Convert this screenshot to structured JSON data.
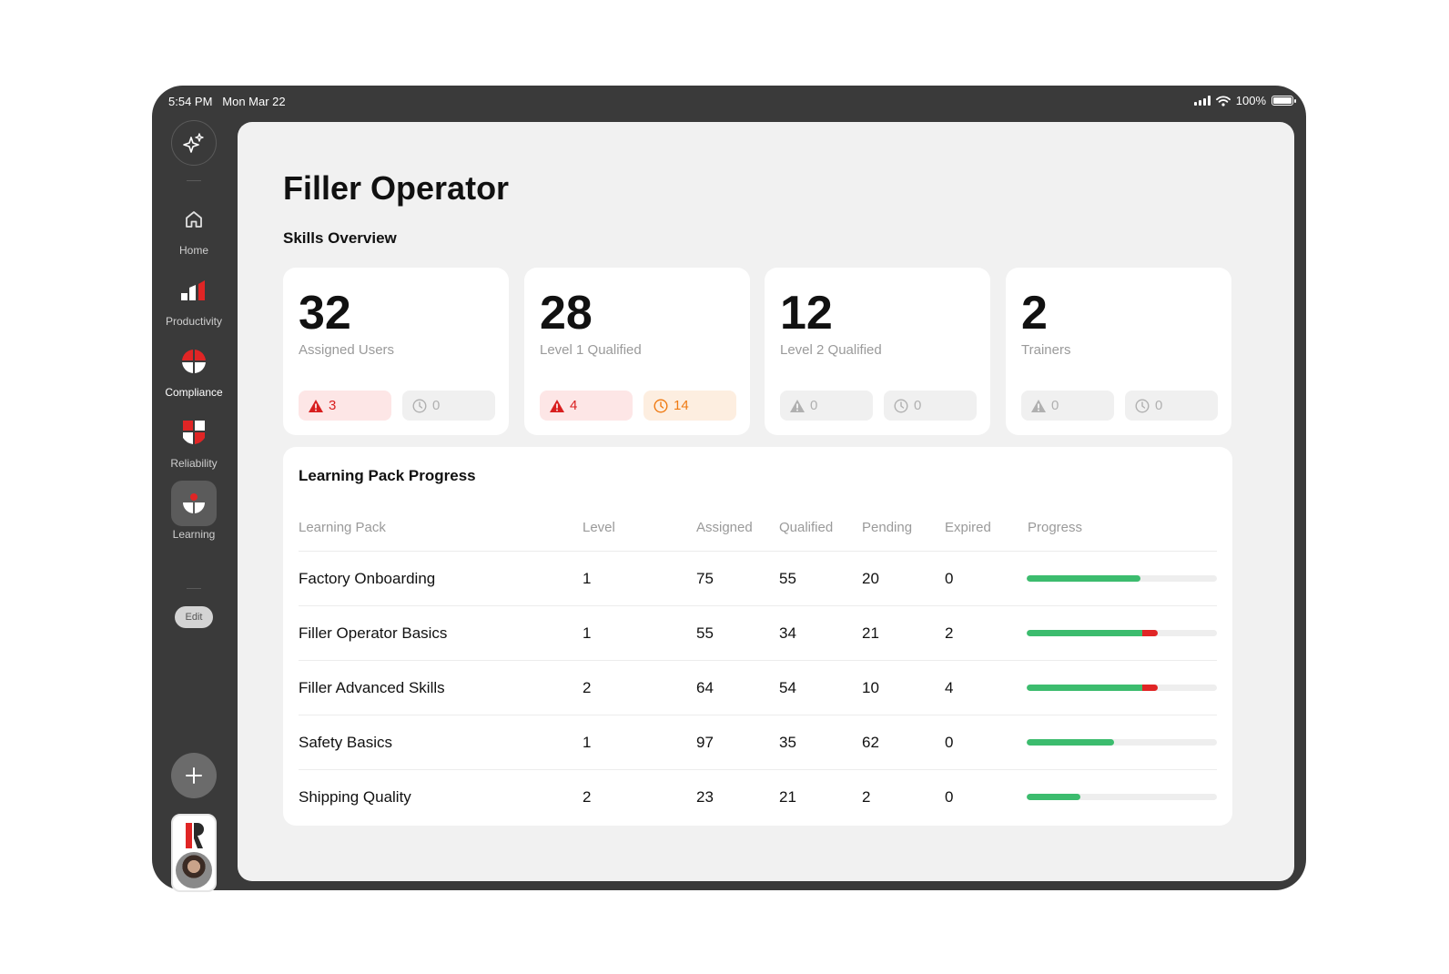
{
  "status_bar": {
    "time": "5:54 PM",
    "date": "Mon Mar 22",
    "battery": "100%"
  },
  "sidebar": {
    "items": [
      {
        "label": "Home",
        "icon": "home-icon"
      },
      {
        "label": "Productivity",
        "icon": "productivity-icon"
      },
      {
        "label": "Compliance",
        "icon": "compliance-icon"
      },
      {
        "label": "Reliability",
        "icon": "reliability-icon"
      },
      {
        "label": "Learning",
        "icon": "learning-icon",
        "active": true
      }
    ],
    "edit_label": "Edit"
  },
  "page": {
    "title": "Filler Operator",
    "section": "Skills Overview"
  },
  "cards": [
    {
      "value": "32",
      "label": "Assigned Users",
      "alert": "3",
      "pending": "0",
      "alert_style": "red",
      "pending_style": "gray"
    },
    {
      "value": "28",
      "label": "Level 1 Qualified",
      "alert": "4",
      "pending": "14",
      "alert_style": "red",
      "pending_style": "orange"
    },
    {
      "value": "12",
      "label": "Level 2 Qualified",
      "alert": "0",
      "pending": "0",
      "alert_style": "gray",
      "pending_style": "gray"
    },
    {
      "value": "2",
      "label": "Trainers",
      "alert": "0",
      "pending": "0",
      "alert_style": "gray",
      "pending_style": "gray"
    }
  ],
  "learning": {
    "title": "Learning Pack Progress",
    "columns": [
      "Learning Pack",
      "Level",
      "Assigned",
      "Qualified",
      "Pending",
      "Expired",
      "Progress"
    ],
    "rows": [
      {
        "pack": "Factory Onboarding",
        "level": "1",
        "assigned": "75",
        "qualified": "55",
        "pending": "20",
        "expired": "0",
        "progress_qualified": 0.6,
        "progress_expired": 0
      },
      {
        "pack": "Filler Operator Basics",
        "level": "1",
        "assigned": "55",
        "qualified": "34",
        "pending": "21",
        "expired": "2",
        "progress_qualified": 0.61,
        "progress_expired": 0.08
      },
      {
        "pack": "Filler Advanced Skills",
        "level": "2",
        "assigned": "64",
        "qualified": "54",
        "pending": "10",
        "expired": "4",
        "progress_qualified": 0.61,
        "progress_expired": 0.08
      },
      {
        "pack": "Safety Basics",
        "level": "1",
        "assigned": "97",
        "qualified": "35",
        "pending": "62",
        "expired": "0",
        "progress_qualified": 0.46,
        "progress_expired": 0
      },
      {
        "pack": "Shipping Quality",
        "level": "2",
        "assigned": "23",
        "qualified": "21",
        "pending": "2",
        "expired": "0",
        "progress_qualified": 0.28,
        "progress_expired": 0
      }
    ]
  },
  "colors": {
    "accent_red": "#e02525",
    "progress_green": "#3cbc6e",
    "pending_orange": "#ef7a12",
    "frame": "#3a3a3a"
  }
}
